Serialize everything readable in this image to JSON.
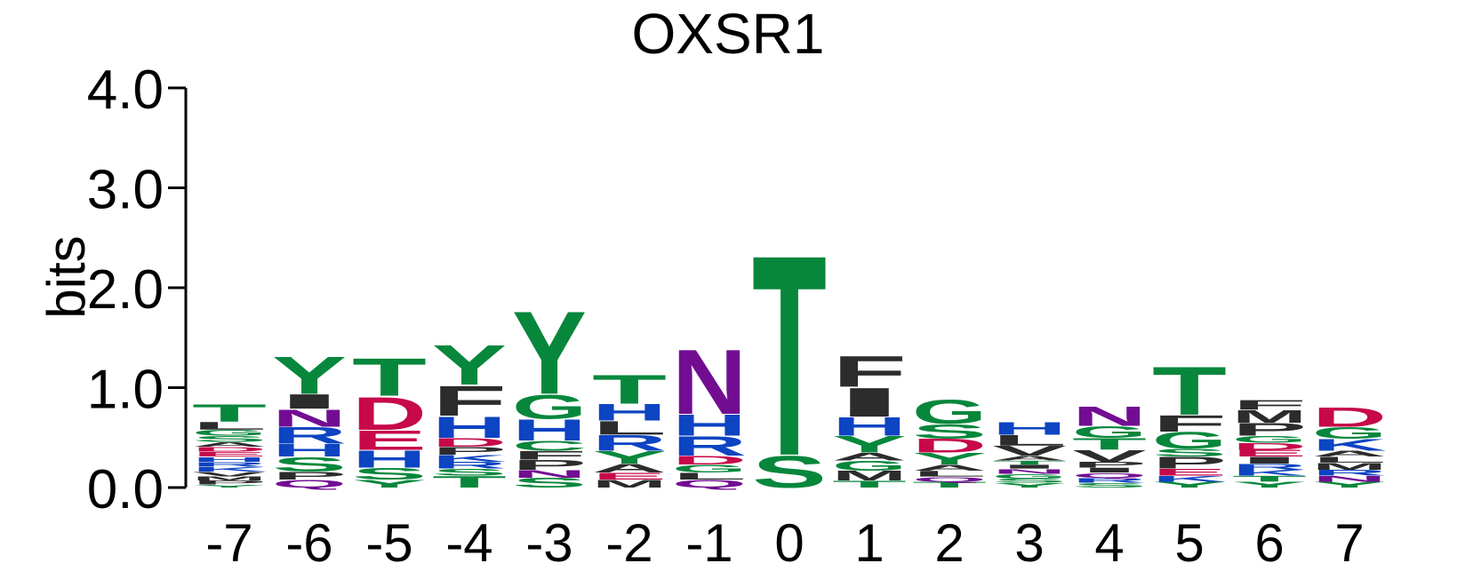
{
  "chart_data": {
    "type": "sequence-logo",
    "title": "OXSR1",
    "ylabel": "bits",
    "ylim": [
      0,
      4.0
    ],
    "yticks": [
      "0.0",
      "1.0",
      "2.0",
      "3.0",
      "4.0"
    ],
    "colors": {
      "S": "#07873c",
      "T": "#07873c",
      "Y": "#07873c",
      "G": "#07873c",
      "C": "#07873c",
      "N": "#720d92",
      "Q": "#720d92",
      "D": "#c7084b",
      "E": "#c7084b",
      "K": "#0d44c2",
      "R": "#0d44c2",
      "H": "#0d44c2",
      "A": "#2c2c2c",
      "V": "#2c2c2c",
      "L": "#2c2c2c",
      "I": "#2c2c2c",
      "P": "#2c2c2c",
      "F": "#2c2c2c",
      "M": "#2c2c2c",
      "W": "#2c2c2c"
    },
    "positions": [
      {
        "x": "-7",
        "stack": [
          [
            "Y",
            0.03
          ],
          [
            "P",
            0.04
          ],
          [
            "M",
            0.04
          ],
          [
            "V",
            0.05
          ],
          [
            "K",
            0.05
          ],
          [
            "R",
            0.05
          ],
          [
            "H",
            0.05
          ],
          [
            "E",
            0.05
          ],
          [
            "D",
            0.05
          ],
          [
            "A",
            0.05
          ],
          [
            "S",
            0.06
          ],
          [
            "G",
            0.06
          ],
          [
            "L",
            0.08
          ],
          [
            "T",
            0.18
          ]
        ]
      },
      {
        "x": "-6",
        "stack": [
          [
            "Q",
            0.08
          ],
          [
            "P",
            0.08
          ],
          [
            "S",
            0.15
          ],
          [
            "H",
            0.13
          ],
          [
            "R",
            0.17
          ],
          [
            "N",
            0.18
          ],
          [
            "I",
            0.15
          ],
          [
            "Y",
            0.39
          ]
        ]
      },
      {
        "x": "-5",
        "stack": [
          [
            "Y",
            0.08
          ],
          [
            "S",
            0.12
          ],
          [
            "H",
            0.18
          ],
          [
            "E",
            0.2
          ],
          [
            "D",
            0.34
          ],
          [
            "T",
            0.39
          ]
        ]
      },
      {
        "x": "-4",
        "stack": [
          [
            "T",
            0.12
          ],
          [
            "S",
            0.07
          ],
          [
            "R",
            0.07
          ],
          [
            "K",
            0.07
          ],
          [
            "P",
            0.08
          ],
          [
            "D",
            0.09
          ],
          [
            "H",
            0.22
          ],
          [
            "F",
            0.31
          ],
          [
            "Y",
            0.41
          ]
        ]
      },
      {
        "x": "-3",
        "stack": [
          [
            "S",
            0.1
          ],
          [
            "N",
            0.08
          ],
          [
            "P",
            0.1
          ],
          [
            "F",
            0.09
          ],
          [
            "C",
            0.1
          ],
          [
            "H",
            0.22
          ],
          [
            "G",
            0.25
          ],
          [
            "Y",
            0.86
          ]
        ]
      },
      {
        "x": "-2",
        "stack": [
          [
            "M",
            0.08
          ],
          [
            "E",
            0.07
          ],
          [
            "A",
            0.09
          ],
          [
            "Y",
            0.13
          ],
          [
            "R",
            0.16
          ],
          [
            "L",
            0.14
          ],
          [
            "H",
            0.17
          ],
          [
            "T",
            0.3
          ]
        ]
      },
      {
        "x": "-1",
        "stack": [
          [
            "Q",
            0.08
          ],
          [
            "L",
            0.07
          ],
          [
            "G",
            0.08
          ],
          [
            "D",
            0.09
          ],
          [
            "R",
            0.2
          ],
          [
            "H",
            0.22
          ],
          [
            "N",
            0.67
          ]
        ]
      },
      {
        "x": "0",
        "stack": [
          [
            "S",
            0.33
          ],
          [
            "T",
            2.08
          ]
        ]
      },
      {
        "x": "1",
        "stack": [
          [
            "T",
            0.07
          ],
          [
            "M",
            0.1
          ],
          [
            "G",
            0.1
          ],
          [
            "A",
            0.08
          ],
          [
            "Y",
            0.17
          ],
          [
            "H",
            0.19
          ],
          [
            "I",
            0.3
          ],
          [
            "F",
            0.32
          ]
        ]
      },
      {
        "x": "2",
        "stack": [
          [
            "T",
            0.06
          ],
          [
            "Q",
            0.05
          ],
          [
            "L",
            0.06
          ],
          [
            "A",
            0.06
          ],
          [
            "Y",
            0.12
          ],
          [
            "D",
            0.14
          ],
          [
            "S",
            0.15
          ],
          [
            "G",
            0.25
          ]
        ]
      },
      {
        "x": "3",
        "stack": [
          [
            "Y",
            0.05
          ],
          [
            "S",
            0.04
          ],
          [
            "G",
            0.05
          ],
          [
            "N",
            0.05
          ],
          [
            "I",
            0.04
          ],
          [
            "T",
            0.04
          ],
          [
            "A",
            0.05
          ],
          [
            "V",
            0.1
          ],
          [
            "L",
            0.11
          ],
          [
            "H",
            0.13
          ]
        ]
      },
      {
        "x": "4",
        "stack": [
          [
            "S",
            0.05
          ],
          [
            "R",
            0.05
          ],
          [
            "Q",
            0.05
          ],
          [
            "I",
            0.05
          ],
          [
            "P",
            0.06
          ],
          [
            "V",
            0.12
          ],
          [
            "T",
            0.12
          ],
          [
            "G",
            0.12
          ],
          [
            "N",
            0.2
          ]
        ]
      },
      {
        "x": "5",
        "stack": [
          [
            "Y",
            0.06
          ],
          [
            "K",
            0.06
          ],
          [
            "E",
            0.07
          ],
          [
            "P",
            0.12
          ],
          [
            "S",
            0.08
          ],
          [
            "G",
            0.17
          ],
          [
            "F",
            0.17
          ],
          [
            "T",
            0.5
          ]
        ]
      },
      {
        "x": "6",
        "stack": [
          [
            "Y",
            0.06
          ],
          [
            "T",
            0.06
          ],
          [
            "K",
            0.06
          ],
          [
            "R",
            0.06
          ],
          [
            "I",
            0.07
          ],
          [
            "E",
            0.07
          ],
          [
            "D",
            0.07
          ],
          [
            "G",
            0.07
          ],
          [
            "P",
            0.13
          ],
          [
            "M",
            0.13
          ],
          [
            "F",
            0.1
          ]
        ]
      },
      {
        "x": "7",
        "stack": [
          [
            "Y",
            0.06
          ],
          [
            "N",
            0.06
          ],
          [
            "R",
            0.06
          ],
          [
            "M",
            0.07
          ],
          [
            "L",
            0.06
          ],
          [
            "A",
            0.06
          ],
          [
            "K",
            0.12
          ],
          [
            "G",
            0.12
          ],
          [
            "D",
            0.2
          ]
        ]
      }
    ]
  }
}
